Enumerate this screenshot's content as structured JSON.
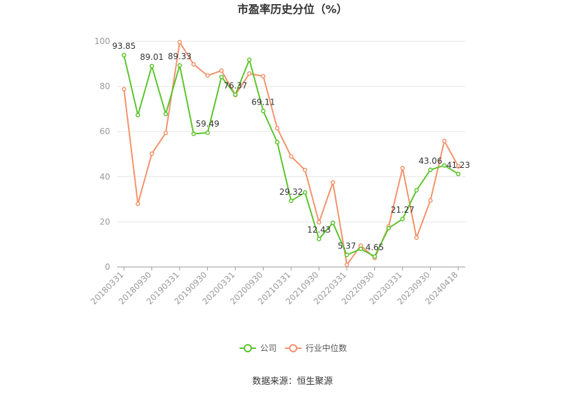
{
  "chart_data": {
    "type": "line",
    "title": "市盈率历史分位（%）",
    "ylim": [
      0,
      100
    ],
    "yticks": [
      0,
      20,
      40,
      60,
      80,
      100
    ],
    "xtick_labels": [
      "20180331",
      "20180930",
      "20190331",
      "20190930",
      "20200331",
      "20200930",
      "20210331",
      "20210930",
      "20220331",
      "20220930",
      "20230331",
      "20230930",
      "20240418"
    ],
    "x": [
      "20180331",
      "20180630",
      "20180930",
      "20181231",
      "20190331",
      "20190630",
      "20190930",
      "20191231",
      "20200331",
      "20200630",
      "20200930",
      "20201231",
      "20210331",
      "20210630",
      "20210930",
      "20211231",
      "20220331",
      "20220630",
      "20220930",
      "20221231",
      "20230331",
      "20230630",
      "20230930",
      "20231231",
      "20240418"
    ],
    "series": [
      {
        "name": "公司",
        "color": "#5ac42b",
        "values": [
          93.85,
          67.3,
          89.01,
          67.8,
          89.33,
          59.0,
          59.49,
          84.2,
          76.37,
          91.8,
          69.11,
          55.3,
          29.32,
          33.0,
          12.43,
          19.6,
          5.37,
          8.0,
          4.65,
          17.2,
          21.27,
          34.0,
          43.06,
          45.0,
          41.23
        ],
        "labels": {
          "0": "93.85",
          "2": "89.01",
          "4": "89.33",
          "6": "59.49",
          "8": "76.37",
          "10": "69.11",
          "12": "29.32",
          "14": "12.43",
          "16": "5.37",
          "18": "4.65",
          "20": "21.27",
          "22": "43.06",
          "24": "41.23"
        }
      },
      {
        "name": "行业中位数",
        "color": "#f4916a",
        "values": [
          78.8,
          28.0,
          50.2,
          59.4,
          99.6,
          89.8,
          84.8,
          87.0,
          76.2,
          85.7,
          84.5,
          61.5,
          49.0,
          43.0,
          19.8,
          37.5,
          1.0,
          9.5,
          4.0,
          18.0,
          43.8,
          13.0,
          29.5,
          55.8,
          44.6
        ]
      }
    ],
    "legend_position": "bottom",
    "grid": true
  },
  "source_text": "数据来源：恒生聚源"
}
